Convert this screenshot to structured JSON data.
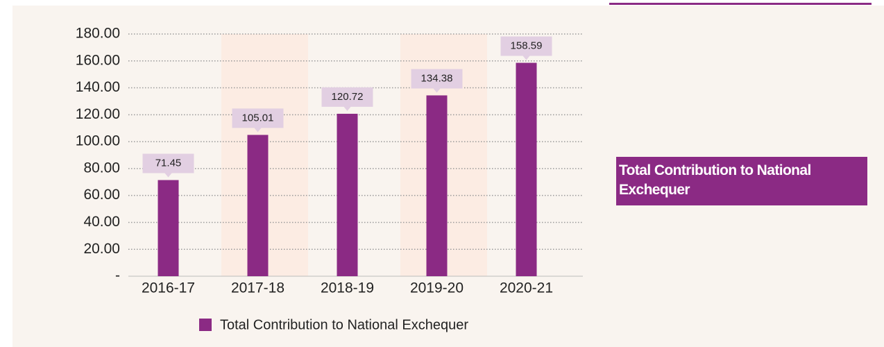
{
  "chart_data": {
    "type": "bar",
    "annotation": "Total Contribution to National Exchequer",
    "categories": [
      "2016-17",
      "2017-18",
      "2018-19",
      "2019-20",
      "2020-21"
    ],
    "series": [
      {
        "name": "Total Contribution to National Exchequer",
        "color": "#8b2a84",
        "values": [
          71.45,
          105.01,
          120.72,
          134.38,
          158.59
        ]
      }
    ],
    "ylim": [
      0,
      180
    ],
    "yticks": [
      {
        "value": 0,
        "label": "-"
      },
      {
        "value": 20,
        "label": "20.00"
      },
      {
        "value": 40,
        "label": "40.00"
      },
      {
        "value": 60,
        "label": "60.00"
      },
      {
        "value": 80,
        "label": "80.00"
      },
      {
        "value": 100,
        "label": "100.00"
      },
      {
        "value": 120,
        "label": "120.00"
      },
      {
        "value": 140,
        "label": "140.00"
      },
      {
        "value": 160,
        "label": "160.00"
      },
      {
        "value": 180,
        "label": "180.00"
      }
    ],
    "grid": true,
    "legend": "bottom"
  }
}
